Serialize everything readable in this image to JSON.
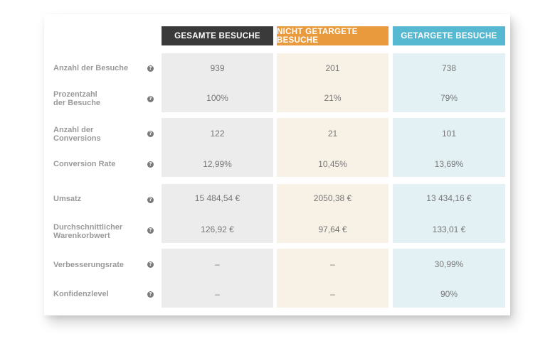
{
  "columns": [
    {
      "label": "GESAMTE BESUCHE",
      "color": "#3a3a3a",
      "bg": "#ececec"
    },
    {
      "label": "NICHT GETARGETE BESUCHE",
      "color": "#e89a3c",
      "bg": "#f8f1e6"
    },
    {
      "label": "GETARGETE BESUCHE",
      "color": "#57b8d1",
      "bg": "#e3f1f5"
    }
  ],
  "rows": [
    {
      "label": "Anzahl der Besuche",
      "values": [
        "939",
        "201",
        "738"
      ]
    },
    {
      "label": "Prozentzahl\nder Besuche",
      "values": [
        "100%",
        "21%",
        "79%"
      ]
    },
    {
      "label": "Anzahl der\nConversions",
      "values": [
        "122",
        "21",
        "101"
      ]
    },
    {
      "label": "Conversion Rate",
      "values": [
        "12,99%",
        "10,45%",
        "13,69%"
      ]
    },
    {
      "label": "Umsatz",
      "values": [
        "15 484,54 €",
        "2050,38 €",
        "13 434,16 €"
      ]
    },
    {
      "label": "Durchschnittlicher\nWarenkorbwert",
      "values": [
        "126,92 €",
        "97,64 €",
        "133,01 €"
      ]
    },
    {
      "label": "Verbesserungsrate",
      "values": [
        "–",
        "–",
        "30,99%"
      ]
    },
    {
      "label": "Konfidenzlevel",
      "values": [
        "–",
        "–",
        "90%"
      ]
    }
  ],
  "help_glyph": "?",
  "help_icon": "question-circle-icon"
}
